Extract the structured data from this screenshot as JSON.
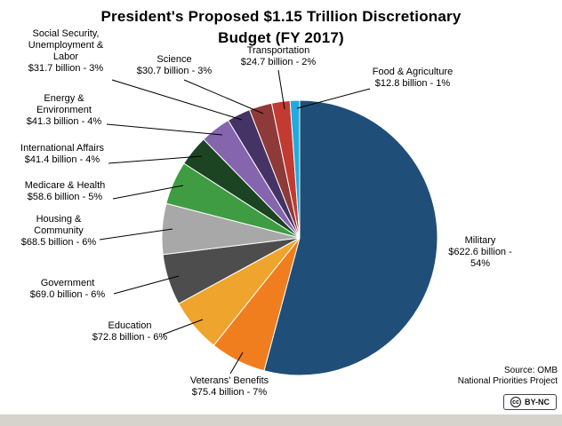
{
  "chart_data": {
    "type": "pie",
    "title": "President's Proposed $1.15 Trillion  Discretionary\nBudget (FY 2017)",
    "direction": "clockwise",
    "start_angle_deg": 0,
    "labels_position": "outside",
    "legend": "none",
    "slices": [
      {
        "name": "Military",
        "amount_billion": 622.6,
        "percent": 54,
        "value_label": "$622.6 billion - 54%",
        "color": "#1F4E79"
      },
      {
        "name": "Veterans' Benefits",
        "amount_billion": 75.4,
        "percent": 7,
        "value_label": "$75.4 billion - 7%",
        "color": "#F07E1E"
      },
      {
        "name": "Education",
        "amount_billion": 72.8,
        "percent": 6,
        "value_label": "$72.8 billion - 6%",
        "color": "#EFA42D"
      },
      {
        "name": "Government",
        "amount_billion": 69.0,
        "percent": 6,
        "value_label": "$69.0 billion - 6%",
        "color": "#4D4D4D"
      },
      {
        "name": "Housing &\nCommunity",
        "amount_billion": 68.5,
        "percent": 6,
        "value_label": "$68.5 billion - 6%",
        "color": "#A8A8A8"
      },
      {
        "name": "Medicare & Health",
        "amount_billion": 58.6,
        "percent": 5,
        "value_label": "$58.6 billion - 5%",
        "color": "#3F9C42"
      },
      {
        "name": "International Affairs",
        "amount_billion": 41.4,
        "percent": 4,
        "value_label": "$41.4 billion - 4%",
        "color": "#1C4423"
      },
      {
        "name": "Energy &\nEnvironment",
        "amount_billion": 41.3,
        "percent": 4,
        "value_label": "$41.3 billion - 4%",
        "color": "#8565AE"
      },
      {
        "name": "Social Security,\nUnemployment &\nLabor",
        "amount_billion": 31.7,
        "percent": 3,
        "value_label": "$31.7 billion - 3%",
        "color": "#453366"
      },
      {
        "name": "Science",
        "amount_billion": 30.7,
        "percent": 3,
        "value_label": "$30.7 billion - 3%",
        "color": "#8E3A38"
      },
      {
        "name": "Transportation",
        "amount_billion": 24.7,
        "percent": 2,
        "value_label": "$24.7 billion - 2%",
        "color": "#C23A31"
      },
      {
        "name": "Food & Agriculture",
        "amount_billion": 12.8,
        "percent": 1,
        "value_label": "$12.8 billion - 1%",
        "color": "#22AADF"
      }
    ]
  },
  "source": {
    "line1": "Source: OMB",
    "line2": "National Priorities Project"
  },
  "license_badge": {
    "icon": "cc",
    "label": "BY-NC"
  }
}
